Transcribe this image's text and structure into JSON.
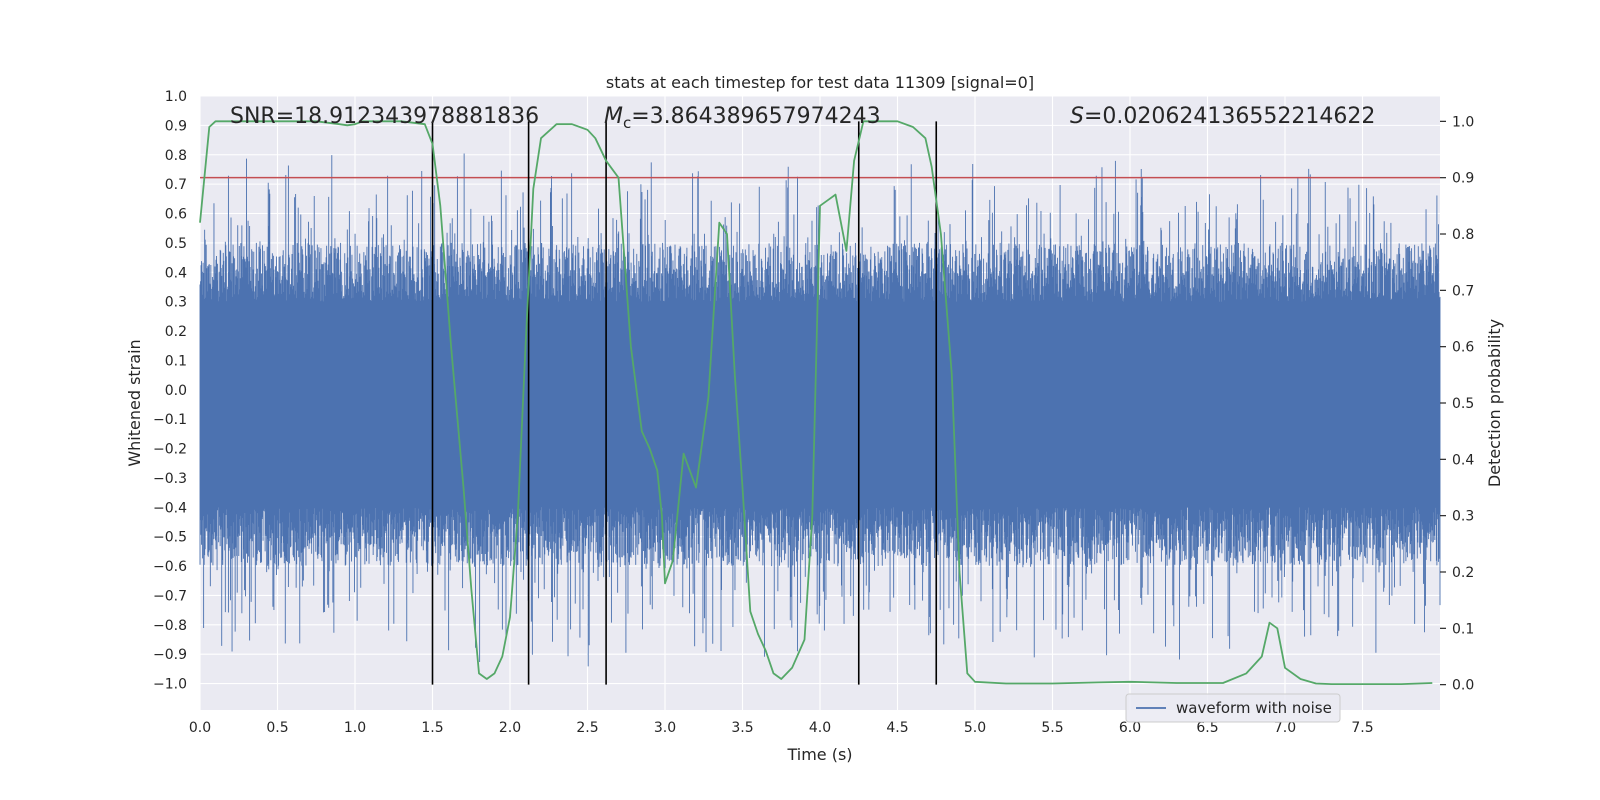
{
  "chart_data": {
    "type": "line",
    "title": "stats at each timestep for test data 11309 [signal=0]",
    "xlabel": "Time (s)",
    "ylabel_left": "Whitened strain",
    "ylabel_right": "Detection probability",
    "xlim": [
      0.0,
      8.0
    ],
    "ylim_left": [
      -1.09,
      1.0
    ],
    "ylim_right": [
      -0.045,
      1.045
    ],
    "x_ticks": [
      "0.0",
      "0.5",
      "1.0",
      "1.5",
      "2.0",
      "2.5",
      "3.0",
      "3.5",
      "4.0",
      "4.5",
      "5.0",
      "5.5",
      "6.0",
      "6.5",
      "7.0",
      "7.5"
    ],
    "x_tick_values": [
      0.0,
      0.5,
      1.0,
      1.5,
      2.0,
      2.5,
      3.0,
      3.5,
      4.0,
      4.5,
      5.0,
      5.5,
      6.0,
      6.5,
      7.0,
      7.5
    ],
    "y_left_ticks": [
      "1.0",
      "0.9",
      "0.8",
      "0.7",
      "0.6",
      "0.5",
      "0.4",
      "0.3",
      "0.2",
      "0.1",
      "0.0",
      "−0.1",
      "−0.2",
      "−0.3",
      "−0.4",
      "−0.5",
      "−0.6",
      "−0.7",
      "−0.8",
      "−0.9",
      "−1.0"
    ],
    "y_left_tick_values": [
      1.0,
      0.9,
      0.8,
      0.7,
      0.6,
      0.5,
      0.4,
      0.3,
      0.2,
      0.1,
      0.0,
      -0.1,
      -0.2,
      -0.3,
      -0.4,
      -0.5,
      -0.6,
      -0.7,
      -0.8,
      -0.9,
      -1.0
    ],
    "y_right_ticks": [
      "1.0",
      "0.9",
      "0.8",
      "0.7",
      "0.6",
      "0.5",
      "0.4",
      "0.3",
      "0.2",
      "0.1",
      "0.0"
    ],
    "y_right_tick_values": [
      1.0,
      0.9,
      0.8,
      0.7,
      0.6,
      0.5,
      0.4,
      0.3,
      0.2,
      0.1,
      0.0
    ],
    "threshold_probability": 0.9,
    "event_lines_s": [
      1.5,
      2.12,
      2.62,
      4.25,
      4.75
    ],
    "annotations": {
      "snr": "SNR=18.912343978881836",
      "mc_symbol": "M",
      "mc_sub": "c",
      "mc_value": "=3.864389657974243",
      "s_symbol": "S",
      "s_value": "=0.020624136552214622"
    },
    "series": [
      {
        "name": "waveform with noise",
        "axis": "left",
        "color": "#4c72b0",
        "style": "dense noisy strain trace",
        "envelope": {
          "core_low": -0.4,
          "core_high": 0.3,
          "peak_low": -1.0,
          "peak_high": 0.88
        }
      },
      {
        "name": "detection probability",
        "axis": "right",
        "color": "#55a868",
        "x": [
          0.0,
          0.06,
          0.1,
          0.15,
          0.3,
          0.5,
          0.75,
          0.9,
          0.95,
          1.0,
          1.05,
          1.15,
          1.3,
          1.45,
          1.5,
          1.55,
          1.62,
          1.7,
          1.75,
          1.8,
          1.85,
          1.9,
          1.95,
          2.0,
          2.05,
          2.1,
          2.15,
          2.2,
          2.3,
          2.4,
          2.5,
          2.55,
          2.62,
          2.7,
          2.78,
          2.85,
          2.9,
          2.95,
          2.98,
          3.0,
          3.05,
          3.12,
          3.2,
          3.28,
          3.35,
          3.4,
          3.45,
          3.5,
          3.55,
          3.6,
          3.65,
          3.7,
          3.75,
          3.82,
          3.9,
          3.95,
          4.0,
          4.05,
          4.1,
          4.17,
          4.22,
          4.28,
          4.32,
          4.4,
          4.5,
          4.6,
          4.68,
          4.72,
          4.78,
          4.85,
          4.9,
          4.95,
          5.0,
          5.2,
          5.5,
          5.8,
          6.0,
          6.3,
          6.6,
          6.75,
          6.85,
          6.9,
          6.95,
          7.0,
          7.1,
          7.2,
          7.3,
          7.5,
          7.75,
          7.95
        ],
        "y": [
          0.82,
          0.99,
          1.0,
          1.0,
          1.0,
          1.0,
          1.0,
          0.995,
          0.993,
          0.995,
          1.0,
          1.0,
          1.0,
          0.995,
          0.96,
          0.85,
          0.6,
          0.35,
          0.17,
          0.02,
          0.01,
          0.02,
          0.05,
          0.12,
          0.3,
          0.6,
          0.88,
          0.97,
          0.995,
          0.995,
          0.985,
          0.97,
          0.93,
          0.9,
          0.6,
          0.45,
          0.42,
          0.38,
          0.3,
          0.18,
          0.22,
          0.41,
          0.35,
          0.51,
          0.82,
          0.8,
          0.55,
          0.35,
          0.13,
          0.09,
          0.06,
          0.02,
          0.01,
          0.03,
          0.08,
          0.3,
          0.85,
          0.86,
          0.87,
          0.77,
          0.93,
          1.0,
          1.0,
          1.0,
          1.0,
          0.99,
          0.97,
          0.92,
          0.8,
          0.55,
          0.2,
          0.02,
          0.005,
          0.002,
          0.002,
          0.004,
          0.005,
          0.003,
          0.003,
          0.02,
          0.05,
          0.11,
          0.1,
          0.03,
          0.01,
          0.002,
          0.001,
          0.001,
          0.001,
          0.003
        ]
      }
    ],
    "legend": {
      "location": "lower-right",
      "entries": [
        "waveform with noise"
      ]
    }
  },
  "colors": {
    "plot_background": "#eaeaf2",
    "grid": "#ffffff",
    "strain": "#4c72b0",
    "probability": "#55a868",
    "threshold": "#c44e52",
    "event_line": "#000000",
    "text": "#262626"
  }
}
